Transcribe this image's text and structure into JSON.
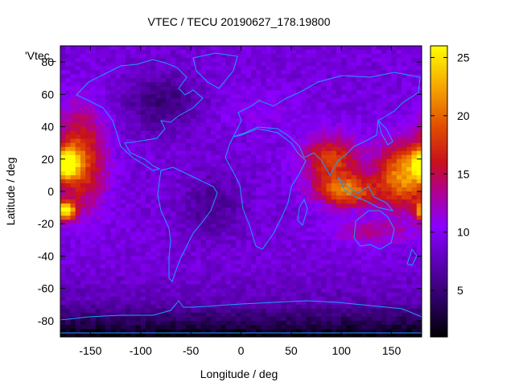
{
  "chart_data": {
    "type": "heatmap",
    "title": "VTEC / TECU 20190627_178.19800",
    "xlabel": "Longitude / deg",
    "ylabel": "Latitude / deg",
    "series_label": "'Vtec_",
    "xlim": [
      -180,
      180
    ],
    "ylim": [
      -90,
      90
    ],
    "x_ticks": [
      -150,
      -100,
      -50,
      0,
      50,
      100,
      150
    ],
    "y_ticks": [
      -80,
      -60,
      -40,
      -20,
      0,
      20,
      40,
      60,
      80
    ],
    "colorbar": {
      "range": [
        1,
        26
      ],
      "ticks": [
        5,
        10,
        15,
        20,
        25
      ]
    },
    "grid_spacing": {
      "lon": 5,
      "lat": 2.5
    },
    "features": [
      {
        "lon": -175,
        "lat": 17,
        "value": 25
      },
      {
        "lon": -175,
        "lat": -12,
        "value": 25
      },
      {
        "lon": 105,
        "lat": 0,
        "value": 20
      },
      {
        "lon": 160,
        "lat": 10,
        "value": 21
      },
      {
        "lon": 90,
        "lat": 20,
        "value": 16
      }
    ],
    "background_value": 9
  }
}
